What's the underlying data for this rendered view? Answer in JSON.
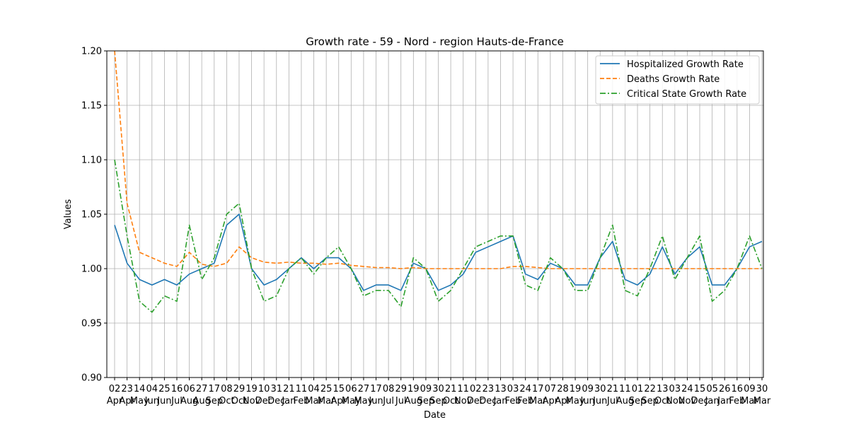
{
  "chart_data": {
    "type": "line",
    "title": "Growth rate - 59 - Nord - region Hauts-de-France",
    "xlabel": "Date",
    "ylabel": "Values",
    "ylim": [
      0.9,
      1.2
    ],
    "yticks": [
      "0.90",
      "0.95",
      "1.00",
      "1.05",
      "1.10",
      "1.15",
      "1.20"
    ],
    "grid": true,
    "legend_position": "top-right",
    "xtick_day_labels": [
      "02",
      "23",
      "14",
      "04",
      "25",
      "16",
      "06",
      "27",
      "17",
      "08",
      "29",
      "19",
      "10",
      "31",
      "21",
      "11",
      "04",
      "25",
      "15",
      "06",
      "27",
      "17",
      "08",
      "29",
      "19",
      "09",
      "30",
      "21",
      "11",
      "02",
      "23",
      "13",
      "03",
      "24",
      "17",
      "07",
      "28",
      "19",
      "09",
      "30",
      "21",
      "11",
      "01",
      "22",
      "13",
      "03",
      "24",
      "15",
      "05",
      "26",
      "16",
      "09",
      "30"
    ],
    "xtick_month_labels": [
      "Apr",
      "Apr",
      "May",
      "Jun",
      "Jun",
      "Jul",
      "Aug",
      "Aug",
      "Sep",
      "Oct",
      "Oct",
      "Nov",
      "Dec",
      "Dec",
      "Jan",
      "Feb",
      "Mar",
      "Mar",
      "Apr",
      "May",
      "May",
      "Jun",
      "Jul",
      "Jul",
      "Aug",
      "Sep",
      "Sep",
      "Oct",
      "Nov",
      "Dec",
      "Dec",
      "Jan",
      "Feb",
      "Feb",
      "Mar",
      "Apr",
      "Apr",
      "May",
      "Jun",
      "Jun",
      "Jul",
      "Aug",
      "Sep",
      "Sep",
      "Oct",
      "Nov",
      "Nov",
      "Dec",
      "Jan",
      "Jan",
      "Feb",
      "Mar",
      "Mar"
    ],
    "series": [
      {
        "name": "Hospitalized Growth Rate",
        "color": "#1f77b4",
        "style": "solid",
        "x": [
          0,
          1,
          2,
          3,
          4,
          5,
          6,
          7,
          8,
          9,
          10,
          11,
          12,
          13,
          14,
          15,
          16,
          17,
          18,
          19,
          20,
          21,
          22,
          23,
          24,
          25,
          26,
          27,
          28,
          29,
          30,
          31,
          32,
          33,
          34,
          35,
          36,
          37,
          38,
          39,
          40,
          41,
          42,
          43,
          44,
          45,
          46,
          47,
          48,
          49,
          50,
          51,
          52
        ],
        "values": [
          1.04,
          1.005,
          0.99,
          0.985,
          0.99,
          0.985,
          0.995,
          1.0,
          1.005,
          1.04,
          1.05,
          1.0,
          0.985,
          0.99,
          1.0,
          1.01,
          1.0,
          1.01,
          1.01,
          1.0,
          0.98,
          0.985,
          0.985,
          0.98,
          1.005,
          1.0,
          0.98,
          0.985,
          0.995,
          1.015,
          1.02,
          1.025,
          1.03,
          0.995,
          0.99,
          1.005,
          1.0,
          0.985,
          0.985,
          1.01,
          1.025,
          0.99,
          0.985,
          0.995,
          1.02,
          0.995,
          1.01,
          1.02,
          0.985,
          0.985,
          1.0,
          1.02,
          1.025
        ]
      },
      {
        "name": "Deaths Growth Rate",
        "color": "#ff7f0e",
        "style": "dashed",
        "x": [
          0,
          1,
          2,
          3,
          4,
          5,
          6,
          7,
          8,
          9,
          10,
          11,
          12,
          13,
          14,
          15,
          16,
          17,
          18,
          19,
          20,
          21,
          22,
          23,
          24,
          25,
          26,
          27,
          28,
          29,
          30,
          31,
          32,
          33,
          34,
          35,
          36,
          37,
          38,
          39,
          40,
          41,
          42,
          43,
          44,
          45,
          46,
          47,
          48,
          49,
          50,
          51,
          52
        ],
        "values": [
          1.2,
          1.06,
          1.015,
          1.01,
          1.005,
          1.002,
          1.015,
          1.004,
          1.002,
          1.005,
          1.02,
          1.01,
          1.006,
          1.005,
          1.006,
          1.005,
          1.005,
          1.004,
          1.005,
          1.003,
          1.002,
          1.001,
          1.001,
          1.0,
          1.001,
          1.0,
          1.0,
          1.0,
          1.0,
          1.0,
          1.0,
          1.0,
          1.002,
          1.002,
          1.001,
          1.0,
          1.0,
          1.0,
          1.0,
          1.0,
          1.0,
          1.0,
          1.0,
          1.0,
          1.0,
          1.0,
          1.0,
          1.0,
          1.0,
          1.0,
          1.0,
          1.0,
          1.0
        ]
      },
      {
        "name": "Critical State Growth Rate",
        "color": "#2ca02c",
        "style": "dashdot",
        "x": [
          0,
          1,
          2,
          3,
          4,
          5,
          6,
          7,
          8,
          9,
          10,
          11,
          12,
          13,
          14,
          15,
          16,
          17,
          18,
          19,
          20,
          21,
          22,
          23,
          24,
          25,
          26,
          27,
          28,
          29,
          30,
          31,
          32,
          33,
          34,
          35,
          36,
          37,
          38,
          39,
          40,
          41,
          42,
          43,
          44,
          45,
          46,
          47,
          48,
          49,
          50,
          51,
          52
        ],
        "values": [
          1.1,
          1.03,
          0.97,
          0.96,
          0.975,
          0.97,
          1.04,
          0.99,
          1.01,
          1.05,
          1.06,
          1.0,
          0.97,
          0.975,
          1.0,
          1.01,
          0.995,
          1.01,
          1.02,
          1.0,
          0.975,
          0.98,
          0.98,
          0.965,
          1.01,
          1.0,
          0.97,
          0.98,
          1.0,
          1.02,
          1.025,
          1.03,
          1.03,
          0.985,
          0.98,
          1.01,
          1.0,
          0.98,
          0.98,
          1.01,
          1.04,
          0.98,
          0.975,
          1.0,
          1.03,
          0.99,
          1.01,
          1.03,
          0.97,
          0.98,
          1.0,
          1.03,
          1.0
        ]
      }
    ]
  }
}
